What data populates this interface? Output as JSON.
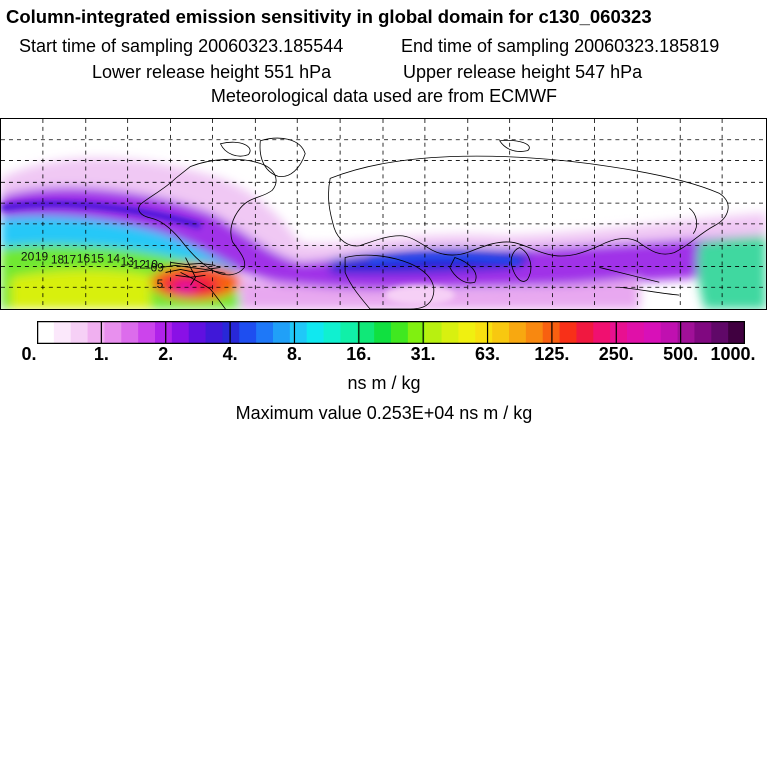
{
  "header": {
    "title": "Column-integrated emission sensitivity in global domain for c130_060323",
    "start_time": "Start time of sampling 20060323.185544",
    "end_time": "End time of sampling 20060323.185819",
    "lower_height": "Lower release height  551 hPa",
    "upper_height": "Upper release height  547 hPa",
    "met_data": "Meteorological data used are from ECMWF"
  },
  "map": {
    "trajectory_labels": [
      "20",
      "19",
      "18",
      "17",
      "16",
      "15",
      "14",
      "13",
      "12",
      "10",
      "09",
      "5"
    ]
  },
  "legend": {
    "tick_labels": [
      "0.",
      "1.",
      "2.",
      "4.",
      "8.",
      "16.",
      "31.",
      "63.",
      "125.",
      "250.",
      "500.",
      "1000."
    ],
    "colors": [
      "#ffffff",
      "#fbe8fb",
      "#f6d0f6",
      "#f0b0f0",
      "#e890ee",
      "#dc6cec",
      "#cc44ec",
      "#b022ea",
      "#8a10e6",
      "#6010e0",
      "#4018d8",
      "#2828d8",
      "#1e4ef0",
      "#1e78f8",
      "#20a0f8",
      "#20c8f8",
      "#10e8f0",
      "#10f0d0",
      "#10f0a8",
      "#10e878",
      "#10e040",
      "#40e820",
      "#80f010",
      "#b8f010",
      "#d8f010",
      "#f0f010",
      "#f8e010",
      "#f8c810",
      "#f8a810",
      "#f88810",
      "#f86010",
      "#f83018",
      "#f01840",
      "#f01070",
      "#e81090",
      "#e010a8",
      "#d810b8",
      "#c010b0",
      "#a01098",
      "#800880",
      "#600868",
      "#400040"
    ],
    "units": "ns m / kg",
    "maximum": "Maximum value  0.253E+04 ns m / kg"
  }
}
